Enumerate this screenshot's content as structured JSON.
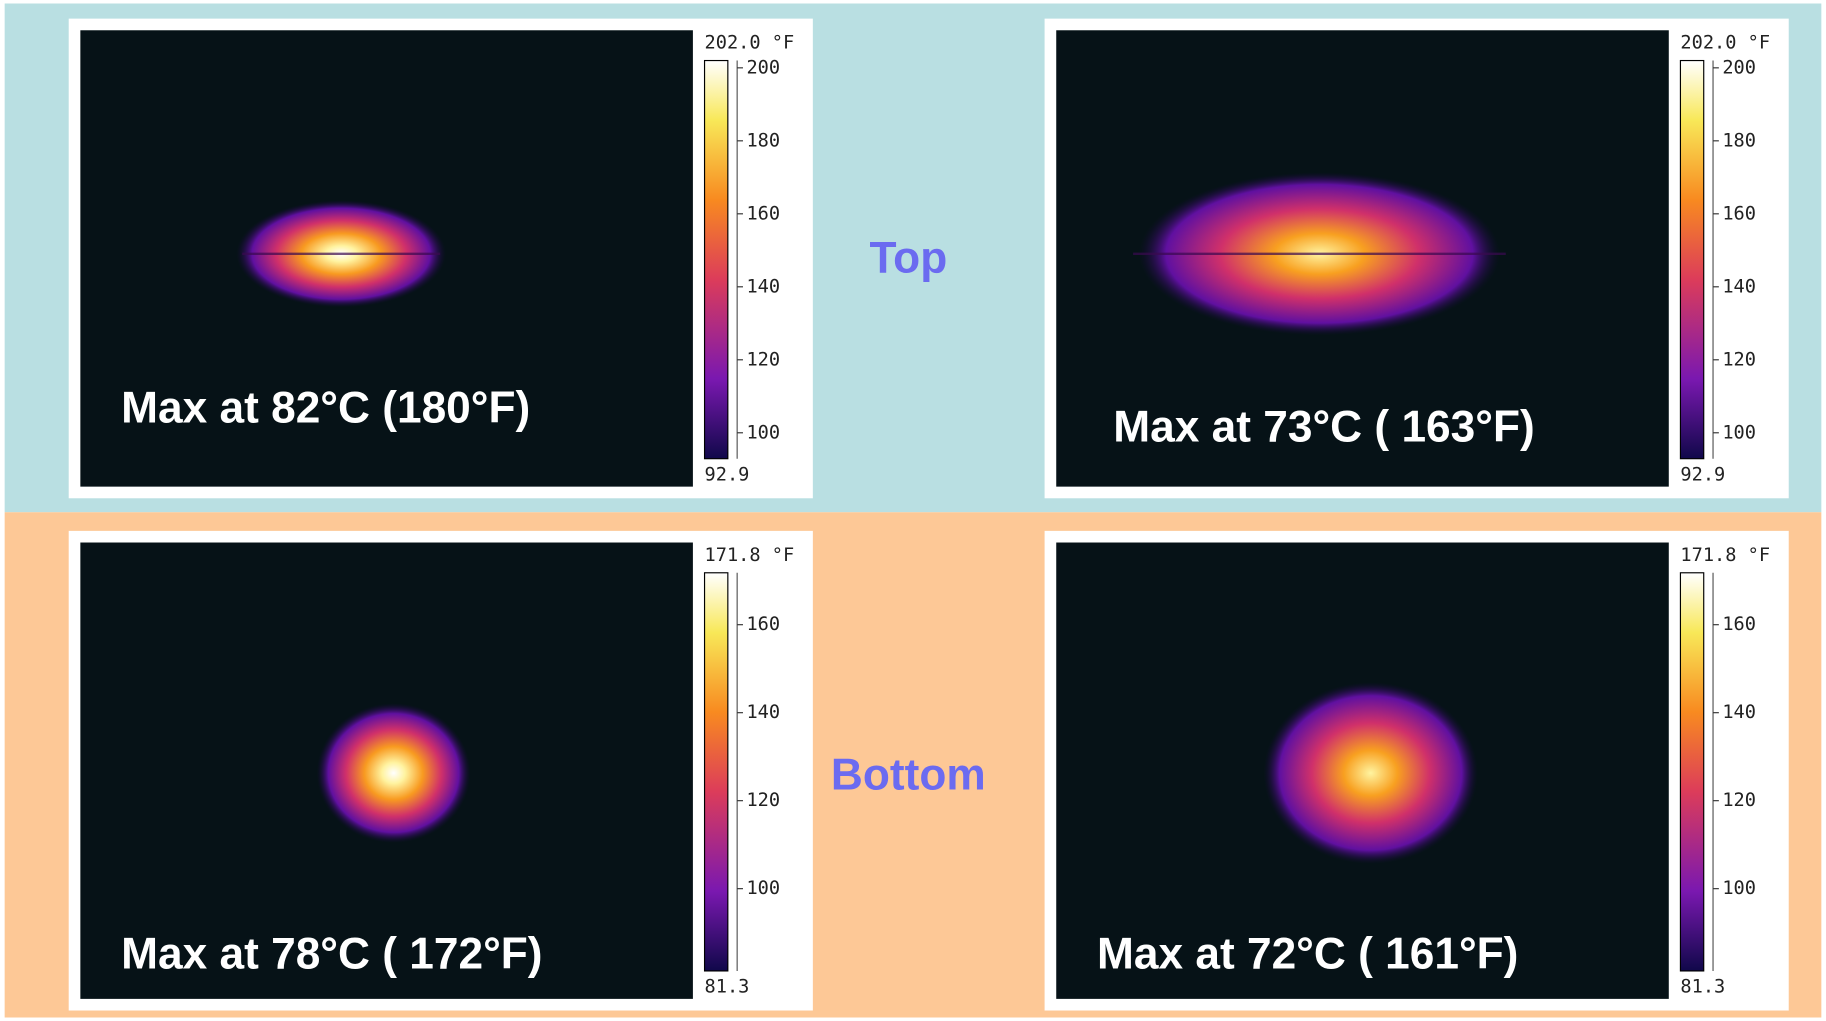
{
  "top_label": "Top",
  "bottom_label": "Bottom",
  "panels": [
    {
      "caption": "Max at 82°C (180°F)",
      "scale_max": {
        "value": 202.0,
        "label": "202.0 °F"
      },
      "scale_min": {
        "value": 92.9,
        "label": "92.9"
      },
      "ticks": [
        200,
        180,
        160,
        140,
        120,
        100
      ]
    },
    {
      "caption": "Max at 73°C ( 163°F)",
      "scale_max": {
        "value": 202.0,
        "label": "202.0 °F"
      },
      "scale_min": {
        "value": 92.9,
        "label": "92.9"
      },
      "ticks": [
        200,
        180,
        160,
        140,
        120,
        100
      ]
    },
    {
      "caption": "Max at 78°C ( 172°F)",
      "scale_max": {
        "value": 171.8,
        "label": "171.8 °F"
      },
      "scale_min": {
        "value": 81.3,
        "label": "81.3"
      },
      "ticks": [
        160,
        140,
        120,
        100
      ]
    },
    {
      "caption": "Max at 72°C ( 161°F)",
      "scale_max": {
        "value": 171.8,
        "label": "171.8 °F"
      },
      "scale_min": {
        "value": 81.3,
        "label": "81.3"
      },
      "ticks": [
        160,
        140,
        120,
        100
      ]
    }
  ]
}
